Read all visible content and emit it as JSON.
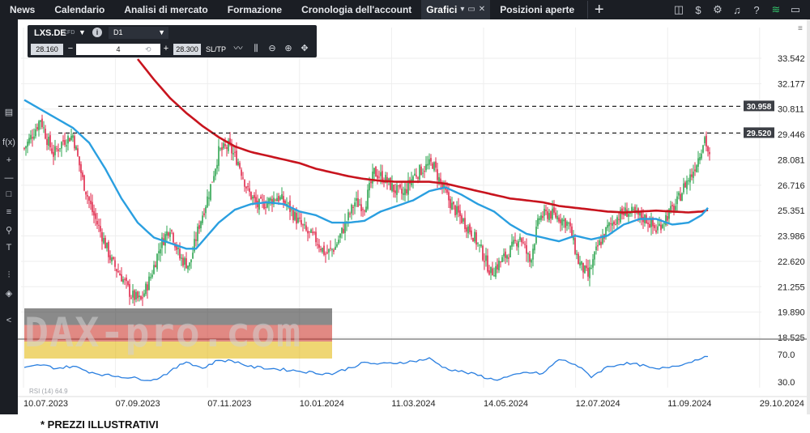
{
  "menu": {
    "items": [
      "News",
      "Calendario",
      "Analisi di mercato",
      "Formazione",
      "Cronologia dell'account"
    ],
    "active_tab": "Grafici",
    "second_tab": "Posizioni aperte",
    "add_label": "+"
  },
  "instrument": {
    "symbol": "LXS.DE",
    "type": "CFD",
    "timeframe": "D1",
    "sell_price": "28.160",
    "buy_price": "28.300",
    "quantity": "4",
    "sltp_label": "SL/TP"
  },
  "rsi_label": "RSI (14) 64.9",
  "watermark": "DAX-pro.com",
  "disclaimer": "* PREZZI ILLUSTRATIVI",
  "colors": {
    "up": "#2ea44f",
    "down": "#e0284b",
    "ma_fast": "#2a9fe0",
    "ma_slow": "#c8141e",
    "rsi": "#2a7fe0"
  },
  "chart_data": {
    "type": "line",
    "price_axis": {
      "ticks": [
        "33.542",
        "32.177",
        "30.811",
        "29.446",
        "28.081",
        "26.716",
        "25.351",
        "23.986",
        "22.620",
        "21.255",
        "19.890",
        "18.525"
      ],
      "range": [
        18.525,
        33.542
      ]
    },
    "rsi_axis": {
      "ticks": [
        "70.0",
        "30.0"
      ],
      "range": [
        30,
        70
      ]
    },
    "x_labels": [
      "10.07.2023",
      "07.09.2023",
      "07.11.2023",
      "10.01.2024",
      "11.03.2024",
      "14.05.2024",
      "12.07.2024",
      "11.09.2024",
      "29.10.2024"
    ],
    "price_levels": [
      {
        "label": "30.958",
        "value": 30.958
      },
      {
        "label": "29.520",
        "value": 29.52
      }
    ],
    "close_anchors": [
      [
        0,
        28.7
      ],
      [
        6,
        29.6
      ],
      [
        10,
        30.3
      ],
      [
        14,
        29.2
      ],
      [
        18,
        28.4
      ],
      [
        24,
        29.1
      ],
      [
        30,
        29.4
      ],
      [
        36,
        27.0
      ],
      [
        42,
        25.3
      ],
      [
        48,
        24.0
      ],
      [
        54,
        22.6
      ],
      [
        60,
        21.8
      ],
      [
        66,
        20.8
      ],
      [
        72,
        20.5
      ],
      [
        78,
        21.8
      ],
      [
        84,
        23.5
      ],
      [
        90,
        24.5
      ],
      [
        96,
        22.8
      ],
      [
        102,
        22.4
      ],
      [
        108,
        24.6
      ],
      [
        114,
        26.3
      ],
      [
        120,
        28.5
      ],
      [
        126,
        28.8
      ],
      [
        132,
        28.0
      ],
      [
        138,
        26.4
      ],
      [
        144,
        25.6
      ],
      [
        150,
        25.8
      ],
      [
        156,
        26.1
      ],
      [
        162,
        25.7
      ],
      [
        168,
        24.9
      ],
      [
        174,
        24.2
      ],
      [
        180,
        23.8
      ],
      [
        186,
        23.0
      ],
      [
        192,
        23.4
      ],
      [
        198,
        24.6
      ],
      [
        204,
        25.8
      ],
      [
        210,
        25.6
      ],
      [
        216,
        27.4
      ],
      [
        222,
        27.1
      ],
      [
        228,
        26.5
      ],
      [
        234,
        26.2
      ],
      [
        240,
        27.2
      ],
      [
        246,
        27.6
      ],
      [
        252,
        27.9
      ],
      [
        258,
        26.6
      ],
      [
        264,
        25.6
      ],
      [
        270,
        24.9
      ],
      [
        276,
        24.2
      ],
      [
        282,
        23.2
      ],
      [
        288,
        22.0
      ],
      [
        294,
        22.6
      ],
      [
        300,
        23.2
      ],
      [
        306,
        24.0
      ],
      [
        312,
        22.6
      ],
      [
        318,
        25.0
      ],
      [
        324,
        25.2
      ],
      [
        330,
        25.0
      ],
      [
        336,
        24.6
      ],
      [
        342,
        22.6
      ],
      [
        348,
        21.8
      ],
      [
        354,
        23.4
      ],
      [
        360,
        24.4
      ],
      [
        366,
        25.0
      ],
      [
        372,
        25.3
      ],
      [
        378,
        25.1
      ],
      [
        384,
        24.9
      ],
      [
        390,
        24.3
      ],
      [
        396,
        25.0
      ],
      [
        402,
        25.6
      ],
      [
        408,
        26.8
      ],
      [
        412,
        27.3
      ],
      [
        416,
        28.2
      ],
      [
        420,
        29.3
      ],
      [
        423,
        28.16
      ]
    ],
    "ma_fast_anchors": [
      [
        0,
        31.3
      ],
      [
        10,
        30.8
      ],
      [
        20,
        30.3
      ],
      [
        30,
        29.8
      ],
      [
        40,
        29.0
      ],
      [
        50,
        27.6
      ],
      [
        60,
        26.0
      ],
      [
        70,
        24.7
      ],
      [
        80,
        23.9
      ],
      [
        90,
        23.6
      ],
      [
        100,
        23.3
      ],
      [
        106,
        23.3
      ],
      [
        112,
        23.9
      ],
      [
        120,
        24.7
      ],
      [
        130,
        25.4
      ],
      [
        140,
        25.7
      ],
      [
        150,
        25.8
      ],
      [
        160,
        25.7
      ],
      [
        170,
        25.3
      ],
      [
        180,
        25.1
      ],
      [
        190,
        24.7
      ],
      [
        200,
        24.7
      ],
      [
        210,
        24.8
      ],
      [
        220,
        25.3
      ],
      [
        230,
        25.6
      ],
      [
        240,
        25.9
      ],
      [
        250,
        26.4
      ],
      [
        260,
        26.6
      ],
      [
        270,
        26.2
      ],
      [
        280,
        25.7
      ],
      [
        290,
        25.3
      ],
      [
        300,
        24.6
      ],
      [
        310,
        24.1
      ],
      [
        320,
        23.9
      ],
      [
        330,
        23.7
      ],
      [
        340,
        24.0
      ],
      [
        350,
        23.8
      ],
      [
        360,
        24.0
      ],
      [
        370,
        24.6
      ],
      [
        380,
        24.9
      ],
      [
        390,
        24.9
      ],
      [
        400,
        24.6
      ],
      [
        410,
        24.7
      ],
      [
        418,
        25.1
      ],
      [
        423,
        25.6
      ]
    ],
    "ma_slow_anchors": [
      [
        70,
        33.5
      ],
      [
        80,
        32.4
      ],
      [
        90,
        31.4
      ],
      [
        100,
        30.6
      ],
      [
        110,
        29.9
      ],
      [
        120,
        29.3
      ],
      [
        130,
        28.8
      ],
      [
        140,
        28.5
      ],
      [
        150,
        28.3
      ],
      [
        160,
        28.1
      ],
      [
        170,
        27.9
      ],
      [
        180,
        27.6
      ],
      [
        190,
        27.4
      ],
      [
        200,
        27.2
      ],
      [
        210,
        27.05
      ],
      [
        220,
        26.95
      ],
      [
        230,
        26.9
      ],
      [
        240,
        26.9
      ],
      [
        250,
        26.9
      ],
      [
        260,
        26.8
      ],
      [
        270,
        26.6
      ],
      [
        280,
        26.4
      ],
      [
        290,
        26.2
      ],
      [
        300,
        26.0
      ],
      [
        310,
        25.9
      ],
      [
        320,
        25.8
      ],
      [
        330,
        25.6
      ],
      [
        340,
        25.5
      ],
      [
        350,
        25.4
      ],
      [
        360,
        25.3
      ],
      [
        370,
        25.25
      ],
      [
        380,
        25.3
      ],
      [
        390,
        25.35
      ],
      [
        400,
        25.3
      ],
      [
        410,
        25.25
      ],
      [
        418,
        25.3
      ],
      [
        423,
        25.4
      ]
    ],
    "rsi_anchors": [
      [
        0,
        50
      ],
      [
        10,
        55
      ],
      [
        20,
        50
      ],
      [
        30,
        53
      ],
      [
        40,
        45
      ],
      [
        50,
        40
      ],
      [
        60,
        38
      ],
      [
        70,
        35
      ],
      [
        80,
        33
      ],
      [
        90,
        45
      ],
      [
        100,
        60
      ],
      [
        110,
        50
      ],
      [
        120,
        62
      ],
      [
        130,
        60
      ],
      [
        140,
        52
      ],
      [
        150,
        50
      ],
      [
        160,
        48
      ],
      [
        170,
        46
      ],
      [
        180,
        43
      ],
      [
        190,
        42
      ],
      [
        200,
        50
      ],
      [
        210,
        58
      ],
      [
        220,
        56
      ],
      [
        230,
        58
      ],
      [
        240,
        60
      ],
      [
        250,
        64
      ],
      [
        260,
        50
      ],
      [
        270,
        45
      ],
      [
        280,
        40
      ],
      [
        290,
        33
      ],
      [
        300,
        38
      ],
      [
        310,
        44
      ],
      [
        320,
        42
      ],
      [
        330,
        63
      ],
      [
        340,
        56
      ],
      [
        350,
        38
      ],
      [
        360,
        52
      ],
      [
        370,
        57
      ],
      [
        380,
        55
      ],
      [
        390,
        48
      ],
      [
        400,
        53
      ],
      [
        410,
        58
      ],
      [
        418,
        66
      ],
      [
        423,
        64.9
      ]
    ],
    "days": 424,
    "grid": true,
    "legend": "none"
  }
}
